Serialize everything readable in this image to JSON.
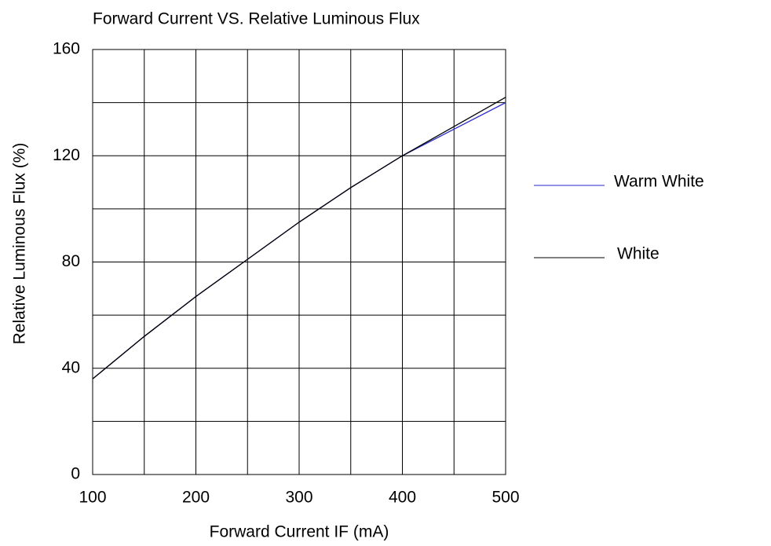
{
  "chart_data": {
    "type": "line",
    "title": "Forward Current VS. Relative Luminous Flux",
    "x_label": "Forward Current IF (mA)",
    "y_label": "Relative  Luminous  Flux  (%)",
    "x": [
      100,
      150,
      200,
      250,
      300,
      350,
      400,
      450,
      500
    ],
    "series": [
      {
        "name": "Warm White",
        "color": "#2a2acc",
        "values": [
          36,
          52,
          67,
          81,
          95,
          108,
          120,
          130,
          140
        ]
      },
      {
        "name": "White",
        "color": "#000000",
        "values": [
          36,
          52,
          67,
          81,
          95,
          108,
          120,
          131,
          142
        ]
      }
    ],
    "xlim": [
      100,
      500
    ],
    "xticks": [
      100,
      200,
      300,
      400,
      500
    ],
    "xminor": [
      150,
      250,
      350,
      450
    ],
    "ylim": [
      0,
      160
    ],
    "yticks": [
      0,
      40,
      80,
      120,
      160
    ],
    "yminor": [
      20,
      60,
      100,
      140
    ],
    "grid": true,
    "legend": "right"
  }
}
